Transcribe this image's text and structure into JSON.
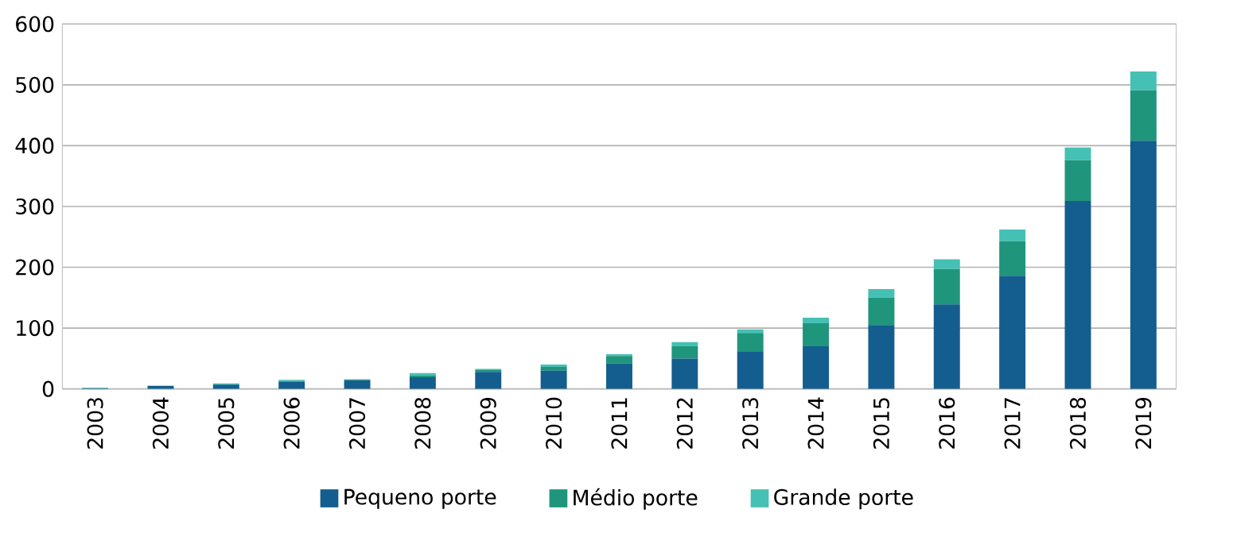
{
  "chart_data": {
    "type": "bar",
    "stacked": true,
    "categories": [
      "2003",
      "2004",
      "2005",
      "2006",
      "2007",
      "2008",
      "2009",
      "2010",
      "2011",
      "2012",
      "2013",
      "2014",
      "2015",
      "2016",
      "2017",
      "2018",
      "2019"
    ],
    "series": [
      {
        "name": "Pequeno porte",
        "color": "#135e8e",
        "values": [
          1,
          5,
          7,
          12,
          14,
          19,
          28,
          30,
          42,
          50,
          61,
          70,
          105,
          139,
          186,
          309,
          408
        ]
      },
      {
        "name": "Médio porte",
        "color": "#1f957c",
        "values": [
          0,
          0,
          0,
          1,
          1,
          3,
          3,
          6,
          12,
          20,
          31,
          38,
          45,
          58,
          57,
          67,
          83
        ]
      },
      {
        "name": "Grande porte",
        "color": "#45c0b4",
        "values": [
          1,
          0,
          2,
          2,
          1,
          4,
          2,
          4,
          3,
          7,
          6,
          9,
          14,
          16,
          19,
          21,
          31
        ]
      }
    ],
    "ylim": [
      0,
      600
    ],
    "yticks": [
      0,
      100,
      200,
      300,
      400,
      500,
      600
    ],
    "grid": "y",
    "legend": "bottom"
  }
}
